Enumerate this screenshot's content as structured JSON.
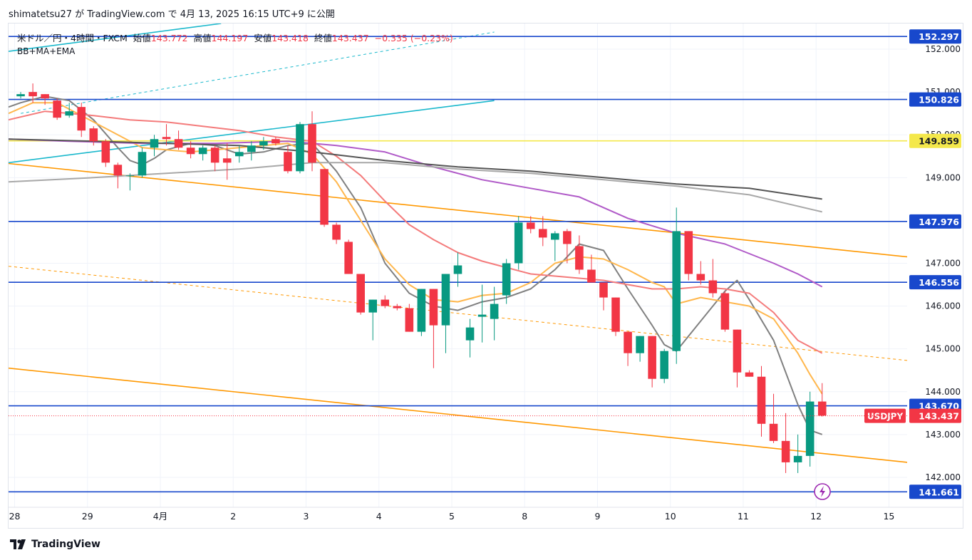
{
  "header": {
    "publish_text": "shimatetsu27 が TradingView.com で 4月 13, 2025 16:15 UTC+9 に公開"
  },
  "legend": {
    "symbol": "米ドル／円・4時間・FXCM",
    "open_label": "始値",
    "open": "143.772",
    "high_label": "高値",
    "high": "144.197",
    "low_label": "安値",
    "low": "143.418",
    "close_label": "終値",
    "close": "143.437",
    "change": "−0.335 (−0.23%)",
    "indicator": "BB+MA+EMA"
  },
  "footer": {
    "brand": "TradingView"
  },
  "colors": {
    "up": "#089981",
    "down": "#f23645",
    "hline": "#1848cc",
    "yellow": "#f4e84b",
    "orange": "#ff9800",
    "cyan": "#1ab8cc"
  },
  "chart_data": {
    "type": "candlestick",
    "symbol": "USDJPY",
    "timeframe": "4H",
    "ylim": [
      141.3,
      152.6
    ],
    "y_ticks": [
      "152.000",
      "151.000",
      "150.000",
      "149.000",
      "147.000",
      "146.000",
      "145.000",
      "144.000",
      "143.000",
      "142.000"
    ],
    "x_ticks": [
      {
        "label": "28",
        "bar": -0.5
      },
      {
        "label": "29",
        "bar": 5.5
      },
      {
        "label": "4月",
        "bar": 11.5
      },
      {
        "label": "2",
        "bar": 17.5
      },
      {
        "label": "3",
        "bar": 23.5
      },
      {
        "label": "4",
        "bar": 29.5
      },
      {
        "label": "5",
        "bar": 35.5
      },
      {
        "label": "8",
        "bar": 41.5
      },
      {
        "label": "9",
        "bar": 47.5
      },
      {
        "label": "10",
        "bar": 53.5
      },
      {
        "label": "11",
        "bar": 59.5
      },
      {
        "label": "12",
        "bar": 65.5
      },
      {
        "label": "15",
        "bar": 71.5
      }
    ],
    "candles": [
      [
        150.9,
        151.0,
        150.85,
        150.95
      ],
      [
        151.0,
        151.2,
        150.75,
        150.9
      ],
      [
        150.95,
        150.95,
        150.7,
        150.85
      ],
      [
        150.8,
        150.85,
        150.35,
        150.4
      ],
      [
        150.45,
        150.75,
        150.4,
        150.55
      ],
      [
        150.65,
        150.75,
        149.95,
        150.1
      ],
      [
        150.15,
        150.2,
        149.75,
        149.85
      ],
      [
        149.85,
        149.9,
        149.25,
        149.35
      ],
      [
        149.3,
        149.35,
        148.75,
        149.05
      ],
      [
        149.05,
        149.1,
        148.7,
        149.05
      ],
      [
        149.05,
        149.7,
        149.0,
        149.6
      ],
      [
        149.7,
        150.0,
        149.5,
        149.9
      ],
      [
        149.95,
        150.25,
        149.75,
        149.9
      ],
      [
        149.9,
        150.1,
        149.65,
        149.7
      ],
      [
        149.7,
        149.85,
        149.45,
        149.55
      ],
      [
        149.55,
        149.75,
        149.4,
        149.7
      ],
      [
        149.7,
        149.75,
        149.15,
        149.35
      ],
      [
        149.45,
        149.8,
        148.95,
        149.35
      ],
      [
        149.5,
        149.75,
        149.35,
        149.6
      ],
      [
        149.6,
        149.85,
        149.4,
        149.75
      ],
      [
        149.75,
        149.95,
        149.65,
        149.85
      ],
      [
        149.9,
        149.95,
        149.75,
        149.8
      ],
      [
        149.6,
        149.75,
        149.1,
        149.15
      ],
      [
        149.15,
        150.3,
        149.1,
        150.25
      ],
      [
        150.25,
        150.55,
        149.15,
        149.35
      ],
      [
        149.2,
        149.2,
        147.85,
        147.9
      ],
      [
        147.9,
        147.95,
        147.45,
        147.55
      ],
      [
        147.5,
        147.55,
        146.75,
        146.75
      ],
      [
        146.75,
        146.75,
        145.8,
        145.85
      ],
      [
        145.85,
        146.15,
        145.2,
        146.15
      ],
      [
        146.15,
        146.25,
        145.95,
        146.0
      ],
      [
        146.0,
        146.05,
        145.9,
        145.95
      ],
      [
        145.95,
        146.05,
        145.4,
        145.4
      ],
      [
        145.4,
        146.4,
        145.3,
        146.4
      ],
      [
        146.4,
        146.4,
        144.55,
        145.55
      ],
      [
        145.55,
        146.75,
        144.9,
        146.75
      ],
      [
        146.75,
        147.25,
        146.45,
        146.95
      ],
      [
        145.2,
        145.7,
        144.8,
        145.5
      ],
      [
        145.75,
        146.5,
        145.15,
        145.8
      ],
      [
        145.7,
        146.45,
        145.2,
        146.05
      ],
      [
        146.25,
        147.1,
        146.05,
        147.0
      ],
      [
        147.0,
        148.1,
        146.85,
        147.95
      ],
      [
        147.95,
        148.1,
        147.7,
        147.8
      ],
      [
        147.8,
        148.1,
        147.4,
        147.6
      ],
      [
        147.55,
        147.75,
        147.05,
        147.7
      ],
      [
        147.75,
        147.8,
        147.0,
        147.45
      ],
      [
        147.4,
        147.65,
        146.75,
        146.85
      ],
      [
        146.85,
        147.2,
        146.6,
        146.55
      ],
      [
        146.55,
        146.55,
        145.9,
        146.2
      ],
      [
        146.2,
        146.2,
        145.3,
        145.4
      ],
      [
        145.4,
        145.4,
        144.6,
        144.9
      ],
      [
        144.9,
        145.3,
        144.7,
        145.3
      ],
      [
        145.3,
        145.3,
        144.1,
        144.3
      ],
      [
        144.3,
        145.0,
        144.2,
        144.95
      ],
      [
        144.95,
        148.3,
        144.65,
        147.75
      ],
      [
        147.75,
        147.75,
        146.6,
        146.75
      ],
      [
        146.75,
        147.05,
        146.5,
        146.6
      ],
      [
        146.6,
        147.1,
        146.2,
        146.3
      ],
      [
        146.3,
        146.35,
        145.4,
        145.45
      ],
      [
        145.45,
        145.45,
        144.1,
        144.45
      ],
      [
        144.45,
        144.5,
        144.35,
        144.35
      ],
      [
        144.35,
        144.6,
        142.95,
        143.25
      ],
      [
        143.25,
        143.95,
        142.8,
        142.85
      ],
      [
        142.85,
        143.5,
        142.1,
        142.35
      ],
      [
        142.35,
        143.0,
        142.1,
        142.5
      ],
      [
        142.5,
        144.0,
        142.25,
        143.77
      ],
      [
        143.77,
        144.2,
        143.42,
        143.44
      ]
    ],
    "horizontal_levels": [
      {
        "value": 152.297,
        "label": "152.297",
        "color": "#1848cc"
      },
      {
        "value": 150.826,
        "label": "150.826",
        "color": "#1848cc"
      },
      {
        "value": 149.859,
        "label": "149.859",
        "color": "#f4e84b"
      },
      {
        "value": 147.976,
        "label": "147.976",
        "color": "#1848cc"
      },
      {
        "value": 146.556,
        "label": "146.556",
        "color": "#1848cc"
      },
      {
        "value": 143.67,
        "label": "143.670",
        "color": "#1848cc"
      },
      {
        "value": 141.661,
        "label": "141.661",
        "color": "#1848cc"
      }
    ],
    "last_price": {
      "symbol": "USDJPY",
      "value": 143.437,
      "label": "143.437"
    },
    "trendlines": [
      {
        "color": "#ff9800",
        "style": "solid",
        "from": [
          -1,
          149.33
        ],
        "to": [
          73,
          147.15
        ]
      },
      {
        "color": "#ff9800",
        "style": "dashed",
        "from": [
          -1,
          146.93
        ],
        "to": [
          73,
          144.73
        ]
      },
      {
        "color": "#ff9800",
        "style": "solid",
        "from": [
          -1,
          144.55
        ],
        "to": [
          73,
          142.35
        ]
      },
      {
        "color": "#1ab8cc",
        "style": "solid",
        "from": [
          -1,
          149.35
        ],
        "to": [
          39,
          150.8
        ]
      },
      {
        "color": "#1ab8cc",
        "style": "solid",
        "from": [
          -1,
          151.95
        ],
        "to": [
          16.5,
          152.6
        ]
      },
      {
        "color": "#1ab8cc",
        "style": "dashed",
        "from": [
          0,
          150.5
        ],
        "to": [
          39,
          152.4
        ]
      }
    ],
    "indicator_lines": [
      {
        "name": "",
        "color": "#808080",
        "width": 2,
        "points": [
          [
            -1,
            150.65
          ],
          [
            0,
            150.75
          ],
          [
            2,
            150.9
          ],
          [
            4,
            150.8
          ],
          [
            6,
            150.35
          ],
          [
            8,
            149.7
          ],
          [
            9,
            149.4
          ],
          [
            10,
            149.3
          ],
          [
            11,
            149.45
          ],
          [
            12,
            149.65
          ],
          [
            14,
            149.8
          ],
          [
            16,
            149.75
          ],
          [
            18,
            149.55
          ],
          [
            20,
            149.6
          ],
          [
            22,
            149.75
          ],
          [
            24,
            149.8
          ],
          [
            26,
            149.15
          ],
          [
            28,
            148.3
          ],
          [
            30,
            147.0
          ],
          [
            32,
            146.3
          ],
          [
            34,
            146.0
          ],
          [
            36,
            145.9
          ],
          [
            38,
            146.1
          ],
          [
            40,
            146.2
          ],
          [
            42,
            146.4
          ],
          [
            44,
            146.85
          ],
          [
            46,
            147.45
          ],
          [
            48,
            147.3
          ],
          [
            50,
            146.4
          ],
          [
            52,
            145.55
          ],
          [
            53,
            145.1
          ],
          [
            54,
            144.95
          ],
          [
            56,
            145.65
          ],
          [
            58,
            146.35
          ],
          [
            59,
            146.6
          ],
          [
            60,
            146.15
          ],
          [
            62,
            145.2
          ],
          [
            64,
            143.7
          ],
          [
            65,
            143.1
          ],
          [
            66,
            143.0
          ]
        ]
      },
      {
        "name": "",
        "color": "#ffb74d",
        "width": 2,
        "points": [
          [
            -1,
            150.5
          ],
          [
            1,
            150.75
          ],
          [
            3,
            150.75
          ],
          [
            6,
            150.3
          ],
          [
            8,
            150.0
          ],
          [
            10,
            149.7
          ],
          [
            12,
            149.65
          ],
          [
            14,
            149.6
          ],
          [
            16,
            149.65
          ],
          [
            18,
            149.7
          ],
          [
            20,
            149.75
          ],
          [
            22,
            149.8
          ],
          [
            24,
            149.55
          ],
          [
            26,
            148.9
          ],
          [
            28,
            148.0
          ],
          [
            30,
            147.1
          ],
          [
            32,
            146.5
          ],
          [
            34,
            146.15
          ],
          [
            36,
            146.1
          ],
          [
            38,
            146.25
          ],
          [
            40,
            146.3
          ],
          [
            42,
            146.55
          ],
          [
            44,
            147.0
          ],
          [
            46,
            147.15
          ],
          [
            48,
            147.1
          ],
          [
            50,
            146.85
          ],
          [
            52,
            146.55
          ],
          [
            53,
            146.45
          ],
          [
            54,
            146.05
          ],
          [
            56,
            146.2
          ],
          [
            58,
            146.1
          ],
          [
            60,
            146.0
          ],
          [
            62,
            145.7
          ],
          [
            64,
            144.9
          ],
          [
            65,
            144.4
          ],
          [
            66,
            143.95
          ]
        ]
      },
      {
        "name": "",
        "color": "#f47b7b",
        "width": 2,
        "points": [
          [
            -1,
            150.35
          ],
          [
            2,
            150.55
          ],
          [
            6,
            150.45
          ],
          [
            9,
            150.35
          ],
          [
            12,
            150.3
          ],
          [
            15,
            150.2
          ],
          [
            18,
            150.1
          ],
          [
            21,
            149.95
          ],
          [
            24,
            149.85
          ],
          [
            26,
            149.5
          ],
          [
            28,
            149.05
          ],
          [
            30,
            148.45
          ],
          [
            32,
            147.9
          ],
          [
            34,
            147.55
          ],
          [
            36,
            147.25
          ],
          [
            38,
            147.05
          ],
          [
            40,
            146.9
          ],
          [
            42,
            146.75
          ],
          [
            44,
            146.7
          ],
          [
            46,
            146.65
          ],
          [
            48,
            146.6
          ],
          [
            50,
            146.5
          ],
          [
            52,
            146.4
          ],
          [
            54,
            146.4
          ],
          [
            56,
            146.45
          ],
          [
            58,
            146.4
          ],
          [
            60,
            146.3
          ],
          [
            62,
            145.85
          ],
          [
            64,
            145.2
          ],
          [
            66,
            144.9
          ]
        ]
      },
      {
        "name": "",
        "color": "#b05ac8",
        "width": 2,
        "points": [
          [
            -1,
            149.9
          ],
          [
            4,
            149.85
          ],
          [
            10,
            149.8
          ],
          [
            16,
            149.8
          ],
          [
            22,
            149.85
          ],
          [
            26,
            149.75
          ],
          [
            30,
            149.6
          ],
          [
            34,
            149.25
          ],
          [
            38,
            148.95
          ],
          [
            42,
            148.75
          ],
          [
            46,
            148.55
          ],
          [
            50,
            148.05
          ],
          [
            54,
            147.7
          ],
          [
            58,
            147.45
          ],
          [
            62,
            147.0
          ],
          [
            64,
            146.75
          ],
          [
            66,
            146.45
          ]
        ]
      },
      {
        "name": "",
        "color": "#555555",
        "width": 2,
        "points": [
          [
            -1,
            149.9
          ],
          [
            6,
            149.85
          ],
          [
            12,
            149.8
          ],
          [
            18,
            149.75
          ],
          [
            24,
            149.6
          ],
          [
            30,
            149.4
          ],
          [
            36,
            149.25
          ],
          [
            42,
            149.15
          ],
          [
            48,
            149.0
          ],
          [
            54,
            148.85
          ],
          [
            60,
            148.75
          ],
          [
            66,
            148.5
          ]
        ]
      },
      {
        "name": "",
        "color": "#a8a8a8",
        "width": 2,
        "points": [
          [
            -1,
            148.9
          ],
          [
            6,
            149.0
          ],
          [
            12,
            149.1
          ],
          [
            18,
            149.2
          ],
          [
            24,
            149.35
          ],
          [
            30,
            149.35
          ],
          [
            36,
            149.2
          ],
          [
            42,
            149.1
          ],
          [
            48,
            148.95
          ],
          [
            54,
            148.8
          ],
          [
            60,
            148.6
          ],
          [
            66,
            148.2
          ]
        ]
      }
    ],
    "x_range": [
      -1,
      73
    ]
  }
}
